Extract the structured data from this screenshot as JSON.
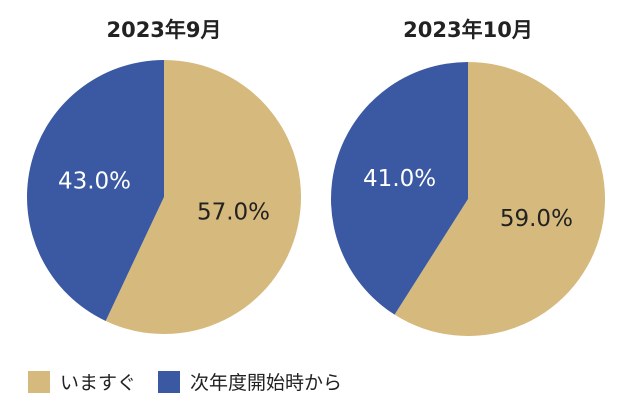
{
  "chart_data": [
    {
      "type": "pie",
      "title": "2023年9月",
      "categories": [
        "いますぐ",
        "次年度開始時から"
      ],
      "values": [
        57.0,
        43.0
      ],
      "labels": [
        "57.0%",
        "43.0%"
      ]
    },
    {
      "type": "pie",
      "title": "2023年10月",
      "categories": [
        "いますぐ",
        "次年度開始時から"
      ],
      "values": [
        59.0,
        41.0
      ],
      "labels": [
        "59.0%",
        "41.0%"
      ]
    }
  ],
  "legend": {
    "placement": "bottom-left",
    "items": [
      {
        "label": "いますぐ",
        "color": "#D6B97D"
      },
      {
        "label": "次年度開始時から",
        "color": "#3A59A2"
      }
    ]
  },
  "colors": {
    "label_on_blue": "#ffffff",
    "label_on_gold": "#222222"
  }
}
